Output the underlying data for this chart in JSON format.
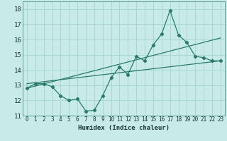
{
  "xlabel": "Humidex (Indice chaleur)",
  "bg_color": "#c8ebe8",
  "grid_color": "#a8d8d4",
  "line_color": "#2a7a6a",
  "xlim": [
    -0.5,
    23.5
  ],
  "ylim": [
    11,
    18.5
  ],
  "xticks": [
    0,
    1,
    2,
    3,
    4,
    5,
    6,
    7,
    8,
    9,
    10,
    11,
    12,
    13,
    14,
    15,
    16,
    17,
    18,
    19,
    20,
    21,
    22,
    23
  ],
  "yticks": [
    11,
    12,
    13,
    14,
    15,
    16,
    17,
    18
  ],
  "line1_x": [
    0,
    1,
    2,
    3,
    4,
    5,
    6,
    7,
    8,
    9,
    10,
    11,
    12,
    13,
    14,
    15,
    16,
    17,
    18,
    19,
    20,
    21,
    22,
    23
  ],
  "line1_y": [
    12.8,
    13.1,
    13.1,
    12.9,
    12.3,
    12.0,
    12.1,
    11.3,
    11.35,
    12.3,
    13.5,
    14.2,
    13.7,
    14.9,
    14.6,
    15.65,
    16.35,
    17.9,
    16.3,
    15.8,
    14.9,
    14.8,
    14.6,
    14.6
  ],
  "line2_x": [
    0,
    23
  ],
  "line2_y": [
    12.8,
    16.1
  ],
  "line3_x": [
    0,
    23
  ],
  "line3_y": [
    13.1,
    14.6
  ]
}
